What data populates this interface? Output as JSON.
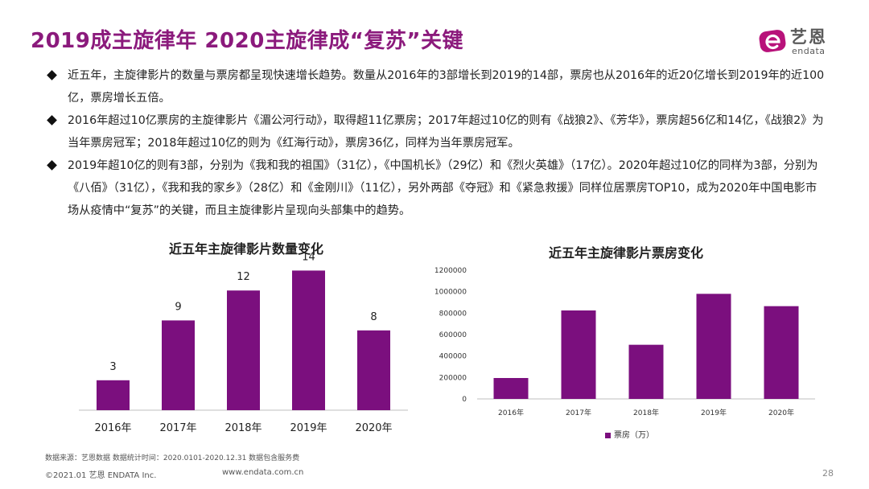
{
  "header": {
    "title": "2019成主旋律年 2020主旋律成“复苏”关键"
  },
  "logo": {
    "cn": "艺恩",
    "en": "endata"
  },
  "bullets": [
    "近五年，主旋律影片的数量与票房都呈现快速增长趋势。数量从2016年的3部增长到2019的14部，票房也从2016年的近20亿增长到2019年的近100亿，票房增长五倍。",
    "2016年超过10亿票房的主旋律影片《湄公河行动》，取得超11亿票房；2017年超过10亿的则有《战狼2》、《芳华》，票房超56亿和14亿，《战狼2》为当年票房冠军；2018年超过10亿的则为《红海行动》，票房36亿，同样为当年票房冠军。",
    "2019年超10亿的则有3部，分别为《我和我的祖国》（31亿），《中国机长》（29亿）和《烈火英雄》（17亿）。2020年超过10亿的同样为3部，分别为《八佰》（31亿），《我和我的家乡》（28亿）和《金刚川》（11亿），另外两部《夺冠》和《紧急救援》同样位居票房TOP10，成为2020年中国电影市场从疫情中“复苏”的关键，而且主旋律影片呈现向头部集中的趋势。"
  ],
  "chart_data": [
    {
      "type": "bar",
      "title": "近五年主旋律影片数量变化",
      "categories": [
        "2016年",
        "2017年",
        "2018年",
        "2019年",
        "2020年"
      ],
      "values": [
        3,
        9,
        12,
        14,
        8
      ],
      "data_labels": [
        "3",
        "9",
        "12",
        "14",
        "8"
      ],
      "ylim": [
        0,
        15
      ],
      "grid": false,
      "color": "#7B0F7E"
    },
    {
      "type": "bar",
      "title": "近五年主旋律影片票房变化",
      "categories": [
        "2016年",
        "2017年",
        "2018年",
        "2019年",
        "2020年"
      ],
      "series": [
        {
          "name": "票房（万）",
          "values": [
            195000,
            825000,
            505000,
            980000,
            865000
          ]
        }
      ],
      "yticks": [
        "0",
        "200000",
        "400000",
        "600000",
        "800000",
        "1000000",
        "1200000"
      ],
      "ylim": [
        0,
        1200000
      ],
      "grid": false,
      "legend_position": "bottom",
      "color": "#7B0F7E"
    }
  ],
  "footer": {
    "source": "数据来源：艺恩数据   数据统计时间：2020.0101-2020.12.31 数据包含服务费",
    "copyright": "©2021.01 艺恩 ENDATA Inc.",
    "url": "www.endata.com.cn",
    "page": "28"
  }
}
